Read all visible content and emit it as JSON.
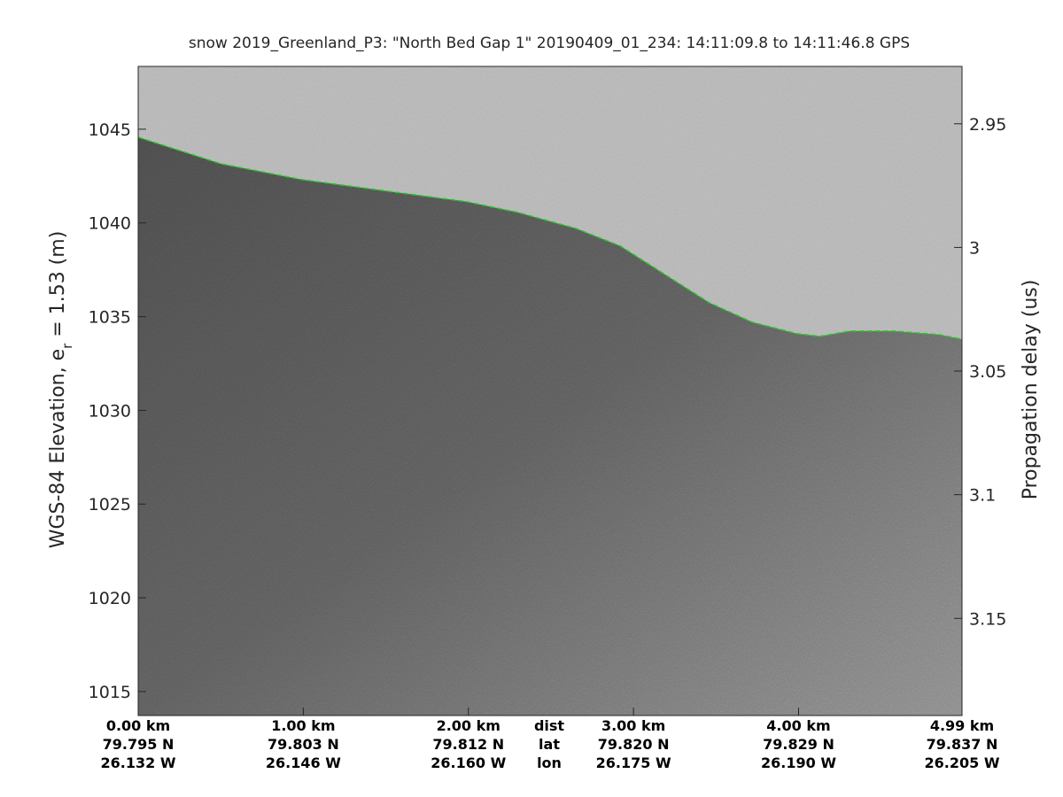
{
  "chart_data": {
    "type": "echogram",
    "title": "snow 2019_Greenland_P3: \"North Bed Gap 1\"  20190409_01_234: 14:11:09.8 to 14:11:46.8 GPS",
    "ylabel": {
      "text": "WGS-84 Elevation, e",
      "subscript": "r",
      "suffix": " = 1.53 (m)"
    },
    "y2label": "Propagation delay (us)",
    "xlim": [
      0,
      4.99
    ],
    "xticks": [
      {
        "value": 0,
        "label": "0.00 km"
      },
      {
        "value": 1,
        "label": "1.00 km"
      },
      {
        "value": 2,
        "label": "2.00 km"
      },
      {
        "value": 3,
        "label": "3.00 km"
      },
      {
        "value": 4,
        "label": "4.00 km"
      },
      {
        "value": 4.99,
        "label": "4.99 km"
      }
    ],
    "xtick_lat": [
      "79.795 N",
      "79.803 N",
      "79.812 N",
      "79.820 N",
      "79.829 N",
      "79.837 N"
    ],
    "xtick_lon": [
      "26.132 W",
      "26.146 W",
      "26.160 W",
      "26.175 W",
      "26.190 W",
      "26.205 W"
    ],
    "row_labels": [
      "dist",
      "lat",
      "lon"
    ],
    "ylim": [
      1013.72,
      1048.35
    ],
    "yticks": [
      1015,
      1020,
      1025,
      1030,
      1035,
      1040,
      1045
    ],
    "y2lim": [
      3.1893,
      2.9268
    ],
    "y2ticks": [
      2.95,
      {
        "value": 3,
        "label": "3"
      },
      3.05,
      3.1,
      3.15
    ],
    "series": [
      {
        "name": "surface",
        "color": "#22cc22",
        "x": [
          0,
          0.5,
          0.99,
          1.47,
          1.99,
          2.3,
          2.65,
          2.92,
          3.19,
          3.46,
          3.72,
          3.99,
          4.13,
          4.31,
          4.58,
          4.85,
          4.99
        ],
        "values": [
          1044.57,
          1043.16,
          1042.31,
          1041.74,
          1041.13,
          1040.56,
          1039.71,
          1038.77,
          1037.25,
          1035.74,
          1034.7,
          1034.09,
          1033.95,
          1034.23,
          1034.23,
          1034.04,
          1033.8
        ]
      }
    ]
  }
}
